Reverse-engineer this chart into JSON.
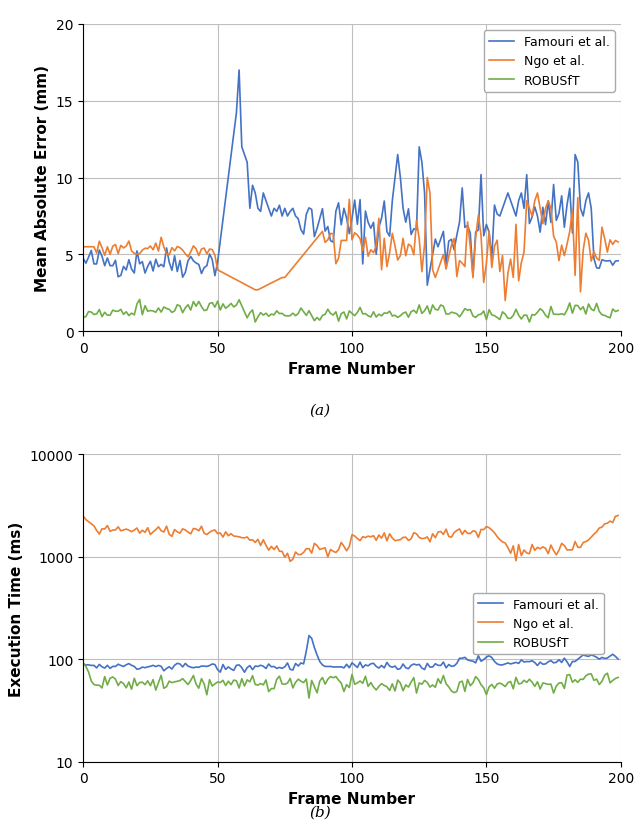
{
  "colors": {
    "famouri": "#4472C4",
    "ngo": "#ED7D31",
    "robusft": "#70AD47"
  },
  "legend_labels": [
    "Famouri et al.",
    "Ngo et al.",
    "ROBUSfT"
  ],
  "xlabel": "Frame Number",
  "subplot_a": {
    "ylabel": "Mean Absolute Error (mm)",
    "ylim": [
      0,
      20
    ],
    "yticks": [
      0,
      5,
      10,
      15,
      20
    ],
    "xlim": [
      0,
      200
    ],
    "xticks": [
      0,
      50,
      100,
      150,
      200
    ],
    "label": "(a)"
  },
  "subplot_b": {
    "ylabel": "Execution Time (ms)",
    "ylim_log": [
      10,
      10000
    ],
    "xlim": [
      0,
      200
    ],
    "xticks": [
      0,
      50,
      100,
      150,
      200
    ],
    "label": "(b)"
  },
  "grid_color": "#BFBFBF",
  "background_color": "#FFFFFF",
  "line_width": 1.2,
  "font_size_label": 11,
  "font_size_tick": 10,
  "font_size_legend": 9,
  "font_size_caption": 11
}
